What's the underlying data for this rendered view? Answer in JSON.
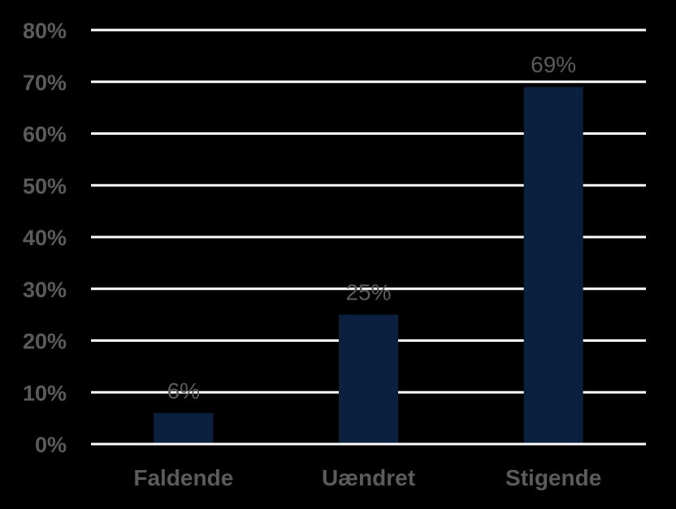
{
  "chart_data": {
    "type": "bar",
    "title": "",
    "xlabel": "",
    "ylabel": "",
    "categories": [
      "Faldende",
      "Uændret",
      "Stigende"
    ],
    "values": [
      6,
      25,
      69
    ],
    "data_labels": [
      "6%",
      "25%",
      "69%"
    ],
    "ylim": [
      0,
      80
    ],
    "yticks": [
      0,
      10,
      20,
      30,
      40,
      50,
      60,
      70,
      80
    ],
    "ytick_labels": [
      "0%",
      "10%",
      "20%",
      "30%",
      "40%",
      "50%",
      "60%",
      "70%",
      "80%"
    ],
    "grid": true,
    "legend": "none"
  },
  "colors": {
    "background": "#000000",
    "bar": "#0b1f3f",
    "gridline": "#ffffff",
    "text": "#5b5b5b"
  }
}
